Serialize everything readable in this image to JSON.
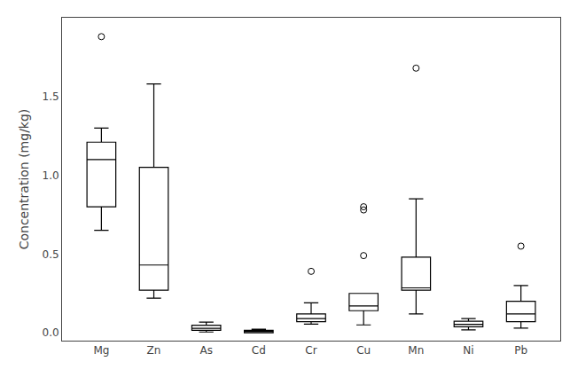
{
  "chart_data": {
    "type": "box",
    "ylabel": "Concentration (mg/kg)",
    "categories": [
      "Mg",
      "Zn",
      "As",
      "Cd",
      "Cr",
      "Cu",
      "Mn",
      "Ni",
      "Pb"
    ],
    "q1": [
      0.8,
      0.27,
      0.015,
      0.0,
      0.07,
      0.14,
      0.27,
      0.038,
      0.07
    ],
    "median": [
      1.1,
      0.43,
      0.028,
      0.008,
      0.09,
      0.17,
      0.285,
      0.053,
      0.12
    ],
    "q3": [
      1.21,
      1.05,
      0.048,
      0.015,
      0.12,
      0.25,
      0.48,
      0.073,
      0.2
    ],
    "whislo": [
      0.65,
      0.22,
      0.005,
      0.0,
      0.055,
      0.05,
      0.12,
      0.018,
      0.03
    ],
    "whishi": [
      1.3,
      1.58,
      0.068,
      0.022,
      0.19,
      0.05,
      0.85,
      0.09,
      0.3
    ],
    "fliers": [
      [
        1.88
      ],
      [],
      [],
      [],
      [
        0.39
      ],
      [
        0.49,
        0.78,
        0.8
      ],
      [
        1.68
      ],
      [],
      [
        0.55
      ]
    ],
    "ylim": [
      -0.05,
      2.0
    ],
    "yticks": [
      {
        "value": 0.0,
        "label": "0.0"
      },
      0.5,
      {
        "value": 1.0,
        "label": "1.0"
      },
      1.5
    ],
    "color": "#000000",
    "grid": false
  }
}
